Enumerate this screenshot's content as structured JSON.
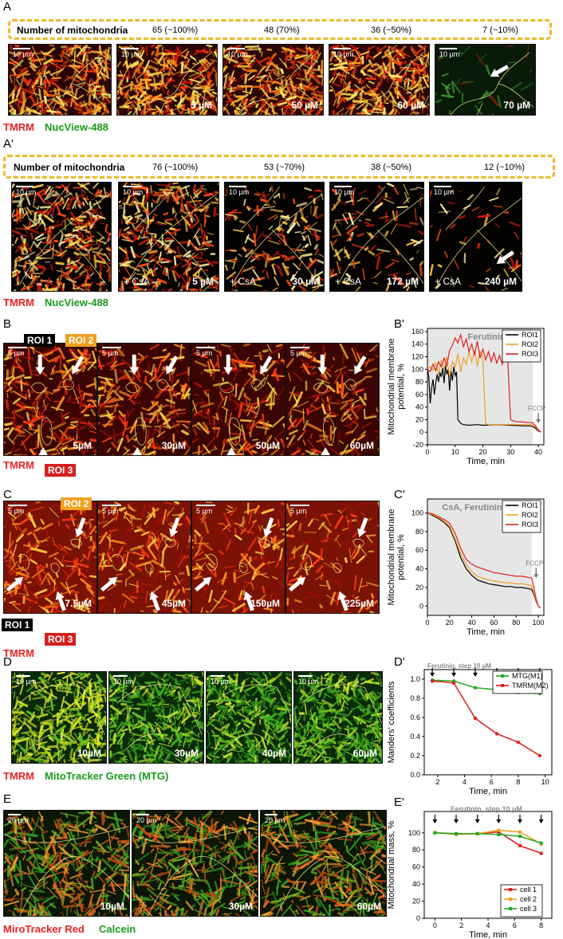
{
  "panels": {
    "A": "A",
    "Aprime": "A'",
    "B": "B",
    "Bprime": "B'",
    "C": "C",
    "Cprime": "C'",
    "D": "D",
    "Dprime": "D'",
    "E": "E",
    "Eprime": "E'"
  },
  "rowA": {
    "count_title": "Number of mitochondria",
    "counts": [
      "65 (~100%)",
      "48 (70%)",
      "36 (~50%)",
      "7 (~10%)"
    ],
    "scale": "10 µm",
    "concentrations": [
      "",
      "5 µM",
      "50 µM",
      "60 µM",
      "70 µM"
    ],
    "legend_red": "TMRM",
    "legend_green": "NucView-488"
  },
  "rowAprime": {
    "count_title": "Number of mitochondria",
    "counts": [
      "76 (~100%)",
      "53 (~70%)",
      "38 (~50%)",
      "12 (~10%)"
    ],
    "scale": "10 µm",
    "csa": "+ CsA",
    "concentrations": [
      "",
      "5 µM",
      "30 µM",
      "172 µM",
      "240 µM"
    ],
    "legend_red": "TMRM",
    "legend_green": "NucView-488"
  },
  "rowB": {
    "roi1": "ROI 1",
    "roi2": "ROI 2",
    "roi3": "ROI 3",
    "scale": "5 µm",
    "concentrations": [
      "5µM",
      "30µM",
      "50µM",
      "60µM"
    ],
    "legend_red": "TMRM"
  },
  "rowC": {
    "roi1": "ROI 1",
    "roi2": "ROI 2",
    "roi3": "ROI 3",
    "scale": "5 µm",
    "concentrations": [
      "7.5µM",
      "45µM",
      "150µM",
      "225µM"
    ],
    "legend_red": "TMRM"
  },
  "rowD": {
    "scale": "10 µm",
    "concentrations": [
      "10µM",
      "30µM",
      "40µM",
      "60µM"
    ],
    "legend_red": "TMRM",
    "legend_green": "MitoTracker Green (MTG)"
  },
  "rowE": {
    "scale": "20 µm",
    "concentrations": [
      "10µM",
      "30µM",
      "60µM"
    ],
    "legend_red": "MiroTracker Red",
    "legend_green": "Calcein"
  },
  "colors": {
    "black": "#000000",
    "orange": "#f0a020",
    "red": "#e02020",
    "green": "#22aa22",
    "highlight": "#e6e6e6",
    "roi_fill_1": "#000000",
    "roi_fill_2": "#f0a020",
    "roi_fill_3": "#d42020"
  },
  "chart_data": [
    {
      "id": "Bprime",
      "type": "line",
      "ylabel": "Mitochondrial membrane potential, %",
      "xlabel": "Time, min",
      "annotation": "Ferutinin",
      "arrow_label": "FCCP",
      "xlim": [
        0,
        42
      ],
      "ylim": [
        -20,
        165
      ],
      "xticks": [
        0,
        10,
        20,
        30,
        40
      ],
      "yticks": [
        -20,
        0,
        20,
        40,
        60,
        80,
        100,
        120,
        140,
        160
      ],
      "shade": [
        0,
        38
      ],
      "series": [
        {
          "name": "ROI1",
          "color": "#000000",
          "x": [
            0,
            0.5,
            1,
            1.5,
            2,
            2.5,
            3,
            3.5,
            4,
            4.5,
            5,
            5.5,
            6,
            6.5,
            7,
            7.5,
            8,
            8.5,
            9,
            9.5,
            10,
            10.5,
            11,
            12,
            13,
            15,
            18,
            20,
            25,
            30,
            35,
            37,
            38,
            39,
            40,
            41
          ],
          "y": [
            100,
            88,
            46,
            70,
            84,
            60,
            78,
            92,
            80,
            95,
            88,
            102,
            78,
            106,
            92,
            100,
            66,
            98,
            82,
            104,
            90,
            96,
            20,
            14,
            12,
            11,
            12,
            11,
            12,
            11,
            10,
            10,
            9,
            6,
            2,
            0
          ]
        },
        {
          "name": "ROI2",
          "color": "#f0a020",
          "x": [
            0,
            1,
            2,
            3,
            4,
            5,
            6,
            7,
            8,
            9,
            10,
            11,
            12,
            13,
            14,
            15,
            16,
            17,
            18,
            19,
            20,
            20.5,
            21,
            22,
            25,
            30,
            35,
            38,
            39,
            40,
            41
          ],
          "y": [
            100,
            104,
            98,
            110,
            92,
            115,
            100,
            120,
            88,
            112,
            104,
            125,
            96,
            118,
            108,
            128,
            112,
            130,
            105,
            128,
            118,
            60,
            14,
            12,
            12,
            12,
            12,
            12,
            8,
            3,
            0
          ]
        },
        {
          "name": "ROI3",
          "color": "#e02020",
          "x": [
            0,
            1,
            2,
            3,
            4,
            5,
            6,
            7,
            8,
            9,
            10,
            11,
            12,
            13,
            14,
            15,
            16,
            17,
            18,
            19,
            20,
            21,
            22,
            23,
            24,
            25,
            26,
            27,
            28,
            29,
            30,
            31,
            32,
            35,
            38,
            39,
            40,
            41
          ],
          "y": [
            100,
            96,
            108,
            98,
            112,
            104,
            118,
            106,
            130,
            138,
            150,
            142,
            155,
            136,
            148,
            128,
            140,
            122,
            145,
            118,
            132,
            115,
            128,
            112,
            126,
            110,
            122,
            108,
            124,
            112,
            20,
            18,
            17,
            16,
            15,
            10,
            4,
            0
          ]
        }
      ]
    },
    {
      "id": "Cprime",
      "type": "line",
      "ylabel": "Mitochondrial membrane potential, %",
      "xlabel": "Time, min",
      "annotation": "CsA, Ferutinin",
      "arrow_label": "FCCP",
      "xlim": [
        0,
        105
      ],
      "ylim": [
        -10,
        115
      ],
      "xticks": [
        0,
        20,
        40,
        60,
        80,
        100
      ],
      "yticks": [
        0,
        20,
        40,
        60,
        80,
        100
      ],
      "shade": [
        0,
        94
      ],
      "series": [
        {
          "name": "ROI1",
          "color": "#000000",
          "x": [
            0,
            5,
            10,
            15,
            20,
            25,
            30,
            35,
            40,
            45,
            50,
            55,
            60,
            65,
            70,
            75,
            80,
            85,
            90,
            94,
            96,
            98,
            100,
            102
          ],
          "y": [
            100,
            97,
            94,
            90,
            84,
            70,
            52,
            40,
            33,
            28,
            26,
            24,
            23,
            22,
            21,
            21,
            20,
            20,
            19,
            18,
            12,
            5,
            0,
            -2
          ]
        },
        {
          "name": "ROI2",
          "color": "#f0a020",
          "x": [
            0,
            5,
            10,
            15,
            20,
            25,
            30,
            35,
            40,
            45,
            50,
            55,
            60,
            65,
            70,
            75,
            80,
            85,
            90,
            94,
            96,
            98,
            100,
            102
          ],
          "y": [
            100,
            98,
            95,
            91,
            86,
            72,
            56,
            44,
            37,
            32,
            30,
            28,
            27,
            26,
            25,
            25,
            24,
            24,
            23,
            22,
            14,
            6,
            0,
            -2
          ]
        },
        {
          "name": "ROI3",
          "color": "#e02020",
          "x": [
            0,
            5,
            10,
            15,
            20,
            25,
            30,
            35,
            40,
            45,
            50,
            55,
            60,
            65,
            70,
            75,
            80,
            85,
            90,
            94,
            96,
            98,
            100,
            102
          ],
          "y": [
            100,
            99,
            96,
            93,
            89,
            78,
            62,
            50,
            45,
            42,
            40,
            38,
            36,
            35,
            34,
            33,
            32,
            32,
            31,
            30,
            20,
            8,
            0,
            -2
          ]
        }
      ]
    },
    {
      "id": "Dprime",
      "type": "line",
      "ylabel": "Manders' coefficients",
      "xlabel": "Time, min",
      "annotation": "Ferutinin, step 10 µM",
      "xlim": [
        1,
        10.5
      ],
      "ylim": [
        0,
        1.1
      ],
      "xticks": [
        2,
        4,
        6,
        8,
        10
      ],
      "yticks": [
        0.0,
        0.2,
        0.4,
        0.6,
        0.8,
        1.0
      ],
      "ytick_labels": [
        "0.0",
        "0.2",
        "0.4",
        "0.6",
        "0.8",
        "1.0"
      ],
      "arrows_x": [
        1.6,
        3.2,
        4.8,
        6.4,
        8.0,
        9.6
      ],
      "series": [
        {
          "name": "MTG(M1)",
          "color": "#22aa22",
          "x": [
            1.6,
            3.2,
            4.8,
            6.4,
            8.0,
            9.6
          ],
          "y": [
            0.99,
            0.98,
            0.91,
            0.89,
            0.86,
            0.85
          ]
        },
        {
          "name": "TMRM(M2)",
          "color": "#e02020",
          "x": [
            1.6,
            3.2,
            4.8,
            6.4,
            8.0,
            9.6
          ],
          "y": [
            0.98,
            0.96,
            0.59,
            0.43,
            0.34,
            0.2
          ]
        }
      ]
    },
    {
      "id": "Eprime",
      "type": "line",
      "ylabel": "Mitochondrial mass, %",
      "xlabel": "Time, min",
      "annotation": "Ferutinin, step 10 µM",
      "xlim": [
        -0.8,
        8.8
      ],
      "ylim": [
        0,
        125
      ],
      "xticks": [
        0,
        2,
        4,
        6,
        8
      ],
      "yticks": [
        0,
        20,
        40,
        60,
        80,
        100
      ],
      "arrows_x": [
        0,
        1.6,
        3.2,
        4.8,
        6.4,
        8.0
      ],
      "series": [
        {
          "name": "cell 1",
          "color": "#e02020",
          "x": [
            0,
            1.6,
            3.2,
            4.8,
            6.4,
            8.0
          ],
          "y": [
            100,
            99,
            99,
            101,
            85,
            76
          ]
        },
        {
          "name": "cell 2",
          "color": "#f0a020",
          "x": [
            0,
            1.6,
            3.2,
            4.8,
            6.4,
            8.0
          ],
          "y": [
            100,
            98,
            99,
            103,
            101,
            87
          ]
        },
        {
          "name": "cell 3",
          "color": "#22aa22",
          "x": [
            0,
            1.6,
            3.2,
            4.8,
            6.4,
            8.0
          ],
          "y": [
            100,
            99,
            99,
            98,
            96,
            88
          ]
        }
      ]
    }
  ]
}
